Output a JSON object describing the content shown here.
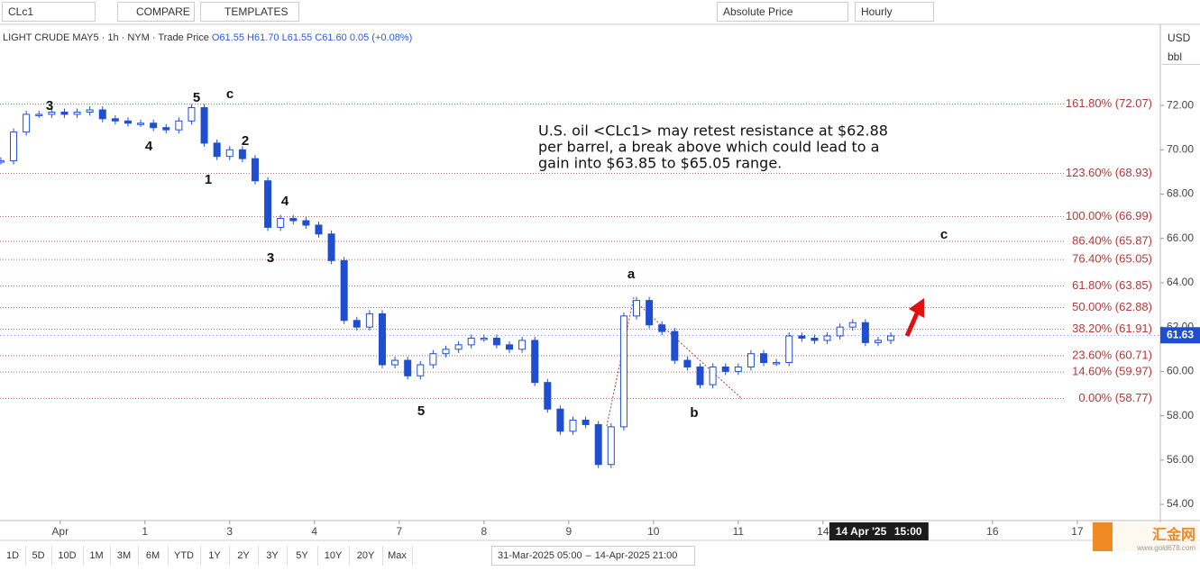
{
  "toolbar": {
    "symbol": "CLc1",
    "compare": "COMPARE",
    "templates": "TEMPLATES",
    "price_mode": "Absolute Price",
    "interval": "Hourly",
    "currency": "USD",
    "unit": "bbl"
  },
  "legend": {
    "instrument": "LIGHT CRUDE MAY5 · 1h · NYM · Trade Price",
    "open": "O61.55",
    "high": "H61.70",
    "low": "L61.55",
    "close": "C61.60",
    "change": "0.05 (+0.08%)"
  },
  "chart_data": {
    "type": "candlestick",
    "x": [
      -0.7,
      -0.55,
      -0.4,
      -0.25,
      -0.1,
      0.05,
      0.2,
      0.35,
      0.5,
      0.65,
      0.8,
      0.95,
      1.1,
      1.25,
      1.4,
      1.55,
      1.7,
      1.85,
      2.0,
      2.15,
      2.3,
      2.45,
      2.6,
      2.75,
      2.9,
      3.05,
      3.2,
      3.35,
      3.5,
      3.65,
      3.8,
      3.95,
      4.1,
      4.25,
      4.4,
      4.55,
      4.7,
      4.85,
      5.0,
      5.15,
      5.3,
      5.45,
      5.6,
      5.75,
      5.9,
      6.05,
      6.2,
      6.35,
      6.5,
      6.65,
      6.8,
      6.95,
      7.1,
      7.25,
      7.4,
      7.55,
      7.7,
      7.85,
      8.0,
      8.15,
      8.3,
      8.45,
      8.6,
      8.75,
      8.9,
      9.05,
      9.2,
      9.35,
      9.5,
      9.65,
      9.8
    ],
    "values": [
      69.5,
      70.8,
      71.6,
      71.6,
      71.7,
      71.6,
      71.7,
      71.8,
      71.4,
      71.3,
      71.2,
      71.2,
      71.0,
      70.9,
      71.3,
      71.9,
      70.3,
      69.7,
      70.0,
      69.6,
      68.6,
      66.5,
      66.9,
      66.8,
      66.6,
      66.2,
      65.0,
      62.3,
      62.0,
      62.6,
      60.3,
      60.5,
      59.8,
      60.3,
      60.8,
      61.0,
      61.2,
      61.5,
      61.5,
      61.2,
      61.0,
      61.4,
      59.5,
      58.3,
      57.3,
      57.8,
      57.6,
      55.8,
      57.5,
      62.5,
      63.2,
      62.1,
      61.8,
      60.5,
      60.2,
      59.4,
      60.2,
      60.0,
      60.2,
      60.8,
      60.4,
      60.4,
      61.6,
      61.5,
      61.4,
      61.6,
      62.0,
      62.2,
      61.3,
      61.4,
      61.6
    ],
    "color": "#1f4fd0",
    "xlim": [
      -0.71,
      12.98
    ],
    "xticks": [
      {
        "value": 0,
        "label": "Apr"
      },
      1,
      {
        "value": 2,
        "label": "3"
      },
      {
        "value": 3,
        "label": "4"
      },
      {
        "value": 4,
        "label": "7"
      },
      {
        "value": 5,
        "label": "8"
      },
      {
        "value": 6,
        "label": "9"
      },
      {
        "value": 7,
        "label": "10"
      },
      {
        "value": 8,
        "label": "11"
      },
      {
        "value": 9,
        "label": "14"
      },
      {
        "value": 11,
        "label": "16"
      },
      {
        "value": 12,
        "label": "17"
      }
    ],
    "ylim": [
      53.27,
      75.62
    ],
    "yticks": [
      {
        "value": 54,
        "label": "54.00"
      },
      {
        "value": 56,
        "label": "56.00"
      },
      {
        "value": 58,
        "label": "58.00"
      },
      {
        "value": 60,
        "label": "60.00"
      },
      {
        "value": 62,
        "label": "62.00"
      },
      {
        "value": 64,
        "label": "64.00"
      },
      {
        "value": 66,
        "label": "66.00"
      },
      {
        "value": 68,
        "label": "68.00"
      },
      {
        "value": 70,
        "label": "70.00"
      },
      {
        "value": 72,
        "label": "72.00"
      }
    ],
    "last_price": 61.63,
    "crosshair": {
      "value": 9.5,
      "label": "14 Apr '25",
      "time": "15:00"
    },
    "fib_levels": [
      {
        "value": 72.07,
        "label": "161.80% (72.07)"
      },
      {
        "value": 68.93,
        "label": "123.60% (68.93)"
      },
      {
        "value": 66.99,
        "label": "100.00% (66.99)"
      },
      {
        "value": 65.87,
        "label": "86.40% (65.87)"
      },
      {
        "value": 65.05,
        "label": "76.40% (65.05)"
      },
      {
        "value": 63.85,
        "label": "61.80% (63.85)"
      },
      {
        "value": 62.88,
        "label": "50.00% (62.88)"
      },
      {
        "value": 61.91,
        "label": "38.20% (61.91)"
      },
      {
        "value": 60.71,
        "label": "23.60% (60.71)"
      },
      {
        "value": 59.97,
        "label": "14.60% (59.97)"
      },
      {
        "value": 58.77,
        "label": "0.00% (58.77)"
      }
    ],
    "fib_color": "#b03a3a",
    "annotations": [
      "3",
      "5",
      "c",
      "4",
      "2",
      "1",
      "4",
      "3",
      "5",
      "a",
      "b",
      "c"
    ],
    "commentary": [
      "U.S. oil <CLc1> may retest resistance at $62.88",
      "per barrel, a break above which could lead to a",
      "gain into $63.85 to $65.05 range."
    ]
  },
  "range_buttons": [
    "1D",
    "5D",
    "10D",
    "1M",
    "3M",
    "6M",
    "YTD",
    "1Y",
    "2Y",
    "3Y",
    "5Y",
    "10Y",
    "20Y",
    "Max"
  ],
  "date_range": {
    "from": "31-Mar-2025 05:00",
    "to": "14-Apr-2025 21:00"
  },
  "watermark": {
    "name": "汇金网",
    "url": "www.gold678.com"
  }
}
